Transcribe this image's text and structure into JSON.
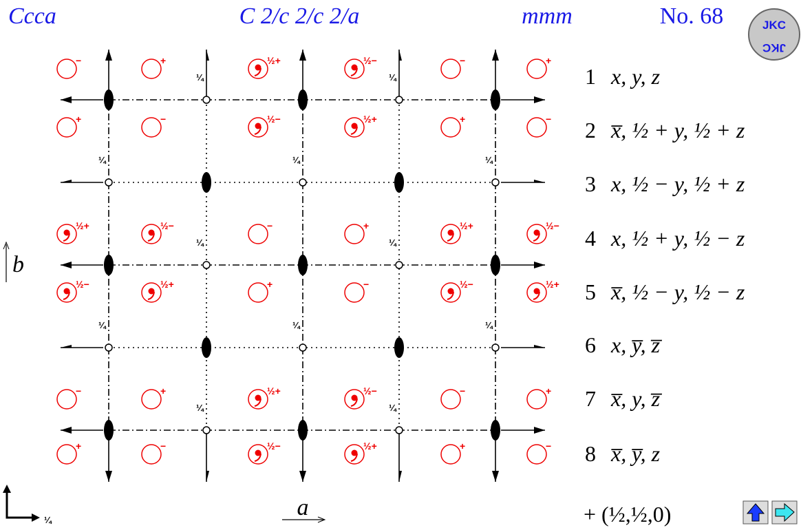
{
  "header": {
    "symbol": "Ccca",
    "full_symbol": "C 2/c 2/c 2/a",
    "point_group": "mmm",
    "number": "No. 68"
  },
  "logo": {
    "text": "JKC"
  },
  "diagram": {
    "quarter": "¼",
    "circle_rows": [
      [
        "−",
        "+",
        "½+",
        "½−",
        "−",
        "+"
      ],
      [
        "+",
        "−",
        "½−",
        "½+",
        "+",
        "−"
      ],
      [
        "½+",
        "½−",
        "−",
        "+",
        "½+",
        "½−"
      ],
      [
        "½−",
        "½+",
        "+",
        "−",
        "½−",
        "½+"
      ],
      [
        "−",
        "+",
        "½+",
        "½−",
        "−",
        "+"
      ],
      [
        "+",
        "−",
        "½−",
        "½+",
        "+",
        "−"
      ]
    ],
    "axis_a": "a",
    "axis_b": "b"
  },
  "positions": [
    {
      "number": "1",
      "coords": "x, y, z"
    },
    {
      "number": "2",
      "coords": "x̅, ½ + y, ½ + z"
    },
    {
      "number": "3",
      "coords": "x, ½ − y, ½ + z"
    },
    {
      "number": "4",
      "coords": "x, ½ + y, ½ − z"
    },
    {
      "number": "5",
      "coords": "x̅, ½ − y, ½ − z"
    },
    {
      "number": "6",
      "coords": "x, y̅, z̅"
    },
    {
      "number": "7",
      "coords": "x̅, y, z̅"
    },
    {
      "number": "8",
      "coords": "x̅, y̅, z"
    }
  ],
  "centering": "+ (½,½,0)"
}
